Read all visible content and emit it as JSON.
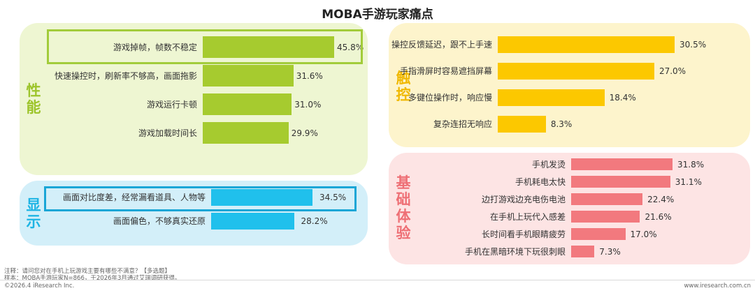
{
  "title": "MOBA手游玩家痛点",
  "chart_data": [
    {
      "type": "bar",
      "group": "性能",
      "categories": [
        "游戏掉帧，帧数不稳定",
        "快速操控时，刷新率不够高，画面拖影",
        "游戏运行卡顿",
        "游戏加载时间长"
      ],
      "values": [
        45.8,
        31.6,
        31.0,
        29.9
      ],
      "labels": [
        "45.8%",
        "31.6%",
        "31.0%",
        "29.9%"
      ],
      "color": "#a6cb2f",
      "highlight": [
        0
      ]
    },
    {
      "type": "bar",
      "group": "显示",
      "categories": [
        "画面对比度差，经常漏看道具、人物等",
        "画面偏色，不够真实还原"
      ],
      "values": [
        34.5,
        28.2
      ],
      "labels": [
        "34.5%",
        "28.2%"
      ],
      "color": "#20c0ec",
      "highlight": [
        0
      ]
    },
    {
      "type": "bar",
      "group": "触控",
      "categories": [
        "操控反馈延迟，跟不上手速",
        "手指滑屏时容易遮挡屏幕",
        "多键位操作时，响应慢",
        "复杂连招无响应"
      ],
      "values": [
        30.5,
        27.0,
        18.4,
        8.3
      ],
      "labels": [
        "30.5%",
        "27.0%",
        "18.4%",
        "8.3%"
      ],
      "color": "#fcc800",
      "highlight": []
    },
    {
      "type": "bar",
      "group": "基础体验",
      "categories": [
        "手机发烫",
        "手机耗电太快",
        "边打游戏边充电伤电池",
        "在手机上玩代入感差",
        "长时间看手机眼睛疲劳",
        "手机在黑暗环境下玩很刺眼"
      ],
      "values": [
        31.8,
        31.1,
        22.4,
        21.6,
        17.0,
        7.3
      ],
      "labels": [
        "31.8%",
        "31.1%",
        "22.4%",
        "21.6%",
        "17.0%",
        "7.3%"
      ],
      "color": "#f2797e",
      "highlight": []
    }
  ],
  "notes": {
    "line1": "注释：请问您对在手机上玩游戏主要有哪些不满意？【多选题】",
    "line2": "样本：MOBA手游玩家N=866，于2026年3月通过艾瑞调研获得。",
    "line3": "©2026.4 iResearch Inc.",
    "site": "www.iresearch.com.cn"
  },
  "colors": {
    "perf_panel": "#eef6d2",
    "disp_panel": "#d3eff9",
    "touch_panel": "#fdf4cc",
    "basic_panel": "#fde4e4",
    "perf_label": "#9cc42a",
    "disp_label": "#1eb4e4",
    "touch_label": "#f0b800",
    "basic_label": "#ee6f75"
  }
}
